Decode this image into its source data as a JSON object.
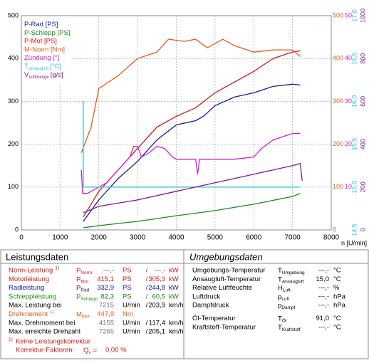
{
  "chart_data": {
    "type": "line",
    "x_label": "n [U/min]",
    "xlim": [
      0,
      8000
    ],
    "xticks": [
      0,
      1000,
      2000,
      3000,
      4000,
      5000,
      6000,
      7000,
      8000
    ],
    "ylim": [
      0,
      500
    ],
    "yticks": [
      0,
      100,
      200,
      300,
      400,
      500
    ],
    "ycolor": "#000000",
    "y2lim": [
      0,
      500
    ],
    "y2ticks": [
      0,
      100,
      200,
      300,
      400,
      500
    ],
    "y2color": "#e85a1a",
    "y3lim": [
      0,
      50
    ],
    "y3ticks": [
      10,
      20,
      30,
      40,
      50
    ],
    "y3color": "#d020d0",
    "y4lim": [
      14.5,
      17.0
    ],
    "y4ticks": [
      {
        "value": 14.5,
        "label": "14,5"
      },
      {
        "value": 15.0,
        "label": "15,0"
      },
      {
        "value": 15.5,
        "label": "15,5"
      },
      {
        "value": 16.0,
        "label": "16,0"
      },
      {
        "value": 16.5,
        "label": "16,5"
      },
      {
        "value": 17.0,
        "label": "17,0"
      }
    ],
    "y4color": "#30c8d0",
    "y5lim": [
      0,
      1000
    ],
    "y5ticks": [
      0,
      200,
      400,
      600,
      800,
      1000
    ],
    "y5color": "#801890",
    "grid": true,
    "series": [
      {
        "name": "P-Rad [PS]",
        "color": "#1a1aa0",
        "axis": "y",
        "x": [
          1600,
          2000,
          2500,
          3000,
          3500,
          4000,
          4500,
          4700,
          5000,
          5500,
          6000,
          6500,
          7000,
          7200
        ],
        "values": [
          20,
          70,
          120,
          160,
          210,
          245,
          255,
          265,
          290,
          310,
          320,
          335,
          340,
          338
        ]
      },
      {
        "name": "P-Schlepp [PS]",
        "color": "#1a8a1a",
        "axis": "y",
        "x": [
          1600,
          2000,
          3000,
          4000,
          5000,
          6000,
          7000,
          7200
        ],
        "values": [
          5,
          10,
          20,
          33,
          45,
          60,
          78,
          85
        ]
      },
      {
        "name": "P-Mot [PS]",
        "color": "#d01818",
        "axis": "y",
        "x": [
          1600,
          2000,
          2500,
          3000,
          3500,
          4000,
          4500,
          5000,
          5500,
          6000,
          6500,
          7000,
          7200
        ],
        "values": [
          30,
          90,
          140,
          190,
          240,
          265,
          285,
          320,
          345,
          370,
          400,
          415,
          418
        ]
      },
      {
        "name": "M-Norm [Nm]",
        "color": "#e85a1a",
        "axis": "y2",
        "x": [
          1550,
          1800,
          2000,
          2500,
          3000,
          3500,
          3800,
          4200,
          4500,
          4800,
          5200,
          5500,
          6000,
          6500,
          7000,
          7200
        ],
        "values": [
          180,
          240,
          330,
          360,
          400,
          415,
          445,
          440,
          445,
          425,
          445,
          430,
          415,
          420,
          420,
          405
        ]
      },
      {
        "name": "Zündung [°]",
        "color": "#d020d0",
        "axis": "y3",
        "x": [
          1550,
          1580,
          1700,
          1800,
          2000,
          2200,
          2400,
          2600,
          2800,
          2900,
          3000,
          3100,
          3300,
          3500,
          3700,
          3900,
          4000,
          4500,
          4550,
          4600,
          5000,
          5500,
          6000,
          6200,
          6500,
          7000,
          7200
        ],
        "values": [
          14,
          8.5,
          8.5,
          9,
          10,
          11,
          13,
          15,
          17,
          19.5,
          19.5,
          17,
          18,
          19.5,
          19,
          17,
          16.5,
          16.5,
          13,
          16.5,
          16.5,
          16.5,
          17,
          19,
          21,
          22.5,
          22.5
        ]
      },
      {
        "name": "T",
        "name_sub": "Ansaugluft",
        "name_unit": "[°C]",
        "color": "#30c8d0",
        "axis": "y4",
        "x": [
          1600,
          1600,
          7200
        ],
        "values": [
          16.0,
          15.0,
          15.0
        ]
      },
      {
        "name": "V",
        "name_sub": "Luftmenge",
        "name_unit": "[g/s]",
        "color": "#801890",
        "axis": "y5",
        "x": [
          1600,
          2000,
          3000,
          4000,
          5000,
          6000,
          6500,
          7000,
          7200,
          7250
        ],
        "values": [
          80,
          110,
          140,
          180,
          220,
          260,
          280,
          300,
          310,
          230
        ]
      }
    ]
  },
  "leistungsdaten": {
    "title": "Leistungsdaten",
    "rows": [
      {
        "color": "#d01818",
        "label": "Norm-Leistung",
        "note": "1)",
        "symbol": "P",
        "symbol_sub": "Norm",
        "value": "---,-",
        "unit": "PS",
        "sep": "/",
        "value2": "---,-",
        "unit2": "kW"
      },
      {
        "color": "#d01818",
        "label": "Motorleistung",
        "symbol": "P",
        "symbol_sub": "Mot",
        "value": "415,1",
        "unit": "PS",
        "sep": "/",
        "value2": "305,3",
        "unit2": "kW"
      },
      {
        "color": "#1a1aa0",
        "label": "Radleistung",
        "symbol": "P",
        "symbol_sub": "Rad",
        "value": "332,9",
        "unit": "PS",
        "sep": "/",
        "value2": "244,8",
        "unit2": "kW"
      },
      {
        "color": "#1a8a1a",
        "label": "Schleppleistung",
        "symbol": "P",
        "symbol_sub": "Schlepp",
        "value": "82,3",
        "unit": "PS",
        "sep": "/",
        "value2": "60,5",
        "unit2": "kW"
      },
      {
        "color": "#000000",
        "value_color": "#777777",
        "label": "Max. Leistung bei",
        "value": "7215",
        "unit": "U/min",
        "sep": "/",
        "value2": "203,9",
        "unit2": "km/h"
      },
      {
        "color": "#e85a1a",
        "label": "Drehmoment",
        "note": "1)",
        "symbol": "M",
        "symbol_sub": "Mot",
        "value": "447,9",
        "unit": "Nm"
      },
      {
        "color": "#000000",
        "value_color": "#777777",
        "label": "Max. Drehmoment bei",
        "value": "4155",
        "unit": "U/min",
        "sep": "/",
        "value2": "117,4",
        "unit2": "km/h"
      },
      {
        "color": "#000000",
        "value_color": "#777777",
        "label": "Max. erreichte Drehzahl",
        "value": "7265",
        "unit": "U/min",
        "sep": "/",
        "value2": "205,1",
        "unit2": "km/h"
      }
    ],
    "footnote": {
      "note": "1)",
      "text": "Keine Leistungskorrektur",
      "factor_label": "Korrektur-Faktoren:",
      "factor_symbol": "Q",
      "factor_sub": "v",
      "factor_eq": "=",
      "factor_value": "0,00 %"
    }
  },
  "umgebungsdaten": {
    "title": "Umgebungsdaten",
    "rows": [
      {
        "label": "Umgebungs-Temperatur",
        "symbol": "T",
        "symbol_sub": "Umgebung",
        "value": "---,-",
        "unit": "°C"
      },
      {
        "label": "Ansaugluft-Temperatur",
        "symbol": "T",
        "symbol_sub": "Ansaugluft",
        "value": "15,0",
        "unit": "°C"
      },
      {
        "label": "Relative Luftfeuchte",
        "symbol": "H",
        "symbol_sub": "Luft",
        "value": "---,-",
        "unit": "%"
      },
      {
        "label": "Luftdruck",
        "symbol": "p",
        "symbol_sub": "Luft",
        "value": "---,-",
        "unit": "hPa"
      },
      {
        "label": "Dampfdruck",
        "symbol": "p",
        "symbol_sub": "Dampf",
        "value": "---,-",
        "unit": "hPa"
      },
      {
        "label": "Öl-Temperatur",
        "symbol": "T",
        "symbol_sub": "Öl",
        "value": "91,0",
        "unit": "°C"
      },
      {
        "label": "Kraftstoff-Temperatur",
        "symbol": "T",
        "symbol_sub": "Kraftstoff",
        "value": "---,-",
        "unit": "°C"
      }
    ]
  }
}
